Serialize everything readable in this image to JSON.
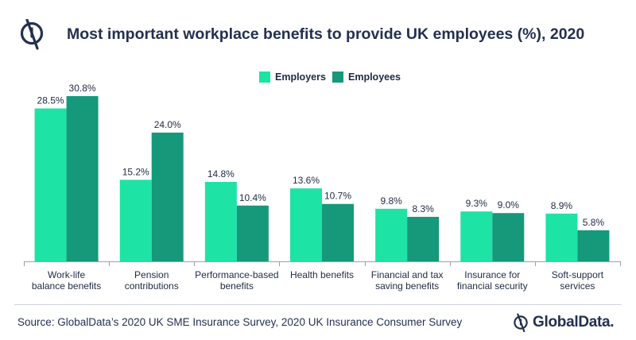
{
  "header": {
    "title": "Most important workplace benefits to provide UK employees (%), 2020",
    "logo_icon": "globaldata-logo-icon"
  },
  "colors": {
    "employers": "#1de3a5",
    "employees": "#15997a",
    "axis": "#9aa0aa",
    "text": "#1f2a44"
  },
  "chart_data": {
    "type": "bar",
    "categories": [
      [
        "Work-life",
        "balance benefits"
      ],
      [
        "Pension",
        "contributions"
      ],
      [
        "Performance-based",
        "benefits"
      ],
      [
        "Health benefits"
      ],
      [
        "Financial and tax",
        "saving benefits"
      ],
      [
        "Insurance for",
        "financial security"
      ],
      [
        "Soft-support",
        "services"
      ]
    ],
    "series": [
      {
        "name": "Employers",
        "values": [
          28.5,
          15.2,
          14.8,
          13.6,
          9.8,
          9.3,
          8.9
        ],
        "labels": [
          "28.5%",
          "15.2%",
          "14.8%",
          "13.6%",
          "9.8%",
          "9.3%",
          "8.9%"
        ]
      },
      {
        "name": "Employees",
        "values": [
          30.8,
          24.0,
          10.4,
          10.7,
          8.3,
          9.0,
          5.8
        ],
        "labels": [
          "30.8%",
          "24.0%",
          "10.4%",
          "10.7%",
          "8.3%",
          "9.0%",
          "5.8%"
        ]
      }
    ],
    "ylim": [
      0,
      32
    ],
    "legend_position": "top-center",
    "grid": false
  },
  "footer": {
    "source": "Source: GlobalData’s 2020 UK SME Insurance Survey, 2020 UK Insurance Consumer Survey",
    "brand": "GlobalData."
  }
}
